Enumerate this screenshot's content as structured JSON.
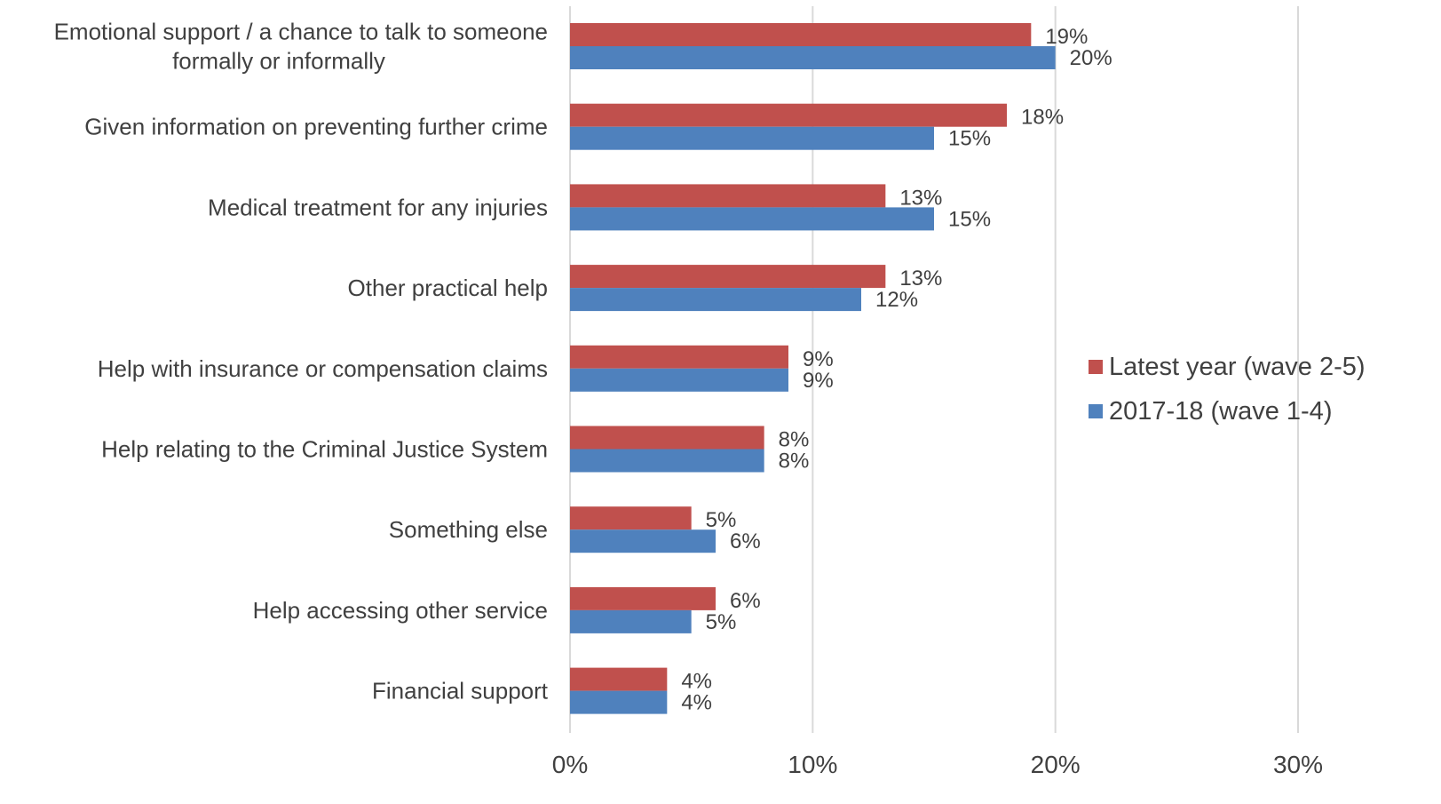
{
  "chart_data": {
    "type": "bar",
    "orientation": "horizontal",
    "categories": [
      [
        "Emotional support / a chance to talk to someone",
        "formally or informally"
      ],
      [
        "Given information on preventing further crime"
      ],
      [
        "Medical treatment for any injuries"
      ],
      [
        "Other practical help"
      ],
      [
        "Help with insurance or compensation claims"
      ],
      [
        "Help relating to the Criminal Justice System"
      ],
      [
        "Something else"
      ],
      [
        "Help accessing other service"
      ],
      [
        "Financial support"
      ]
    ],
    "series": [
      {
        "name": "Latest year (wave 2-5)",
        "color": "#c0504d",
        "values": [
          19,
          18,
          13,
          13,
          9,
          8,
          5,
          6,
          4
        ],
        "labels": [
          "19%",
          "18%",
          "13%",
          "13%",
          "9%",
          "8%",
          "5%",
          "6%",
          "4%"
        ]
      },
      {
        "name": "2017-18 (wave 1-4)",
        "color": "#4f81bd",
        "values": [
          20,
          15,
          15,
          12,
          9,
          8,
          6,
          5,
          4
        ],
        "labels": [
          "20%",
          "15%",
          "15%",
          "12%",
          "9%",
          "8%",
          "6%",
          "5%",
          "4%"
        ]
      }
    ],
    "xlim": [
      0,
      30
    ],
    "xticks": [
      0,
      10,
      20,
      30
    ],
    "xtick_labels": [
      "0%",
      "10%",
      "20%",
      "30%"
    ],
    "grid": true,
    "legend_position": "right"
  }
}
